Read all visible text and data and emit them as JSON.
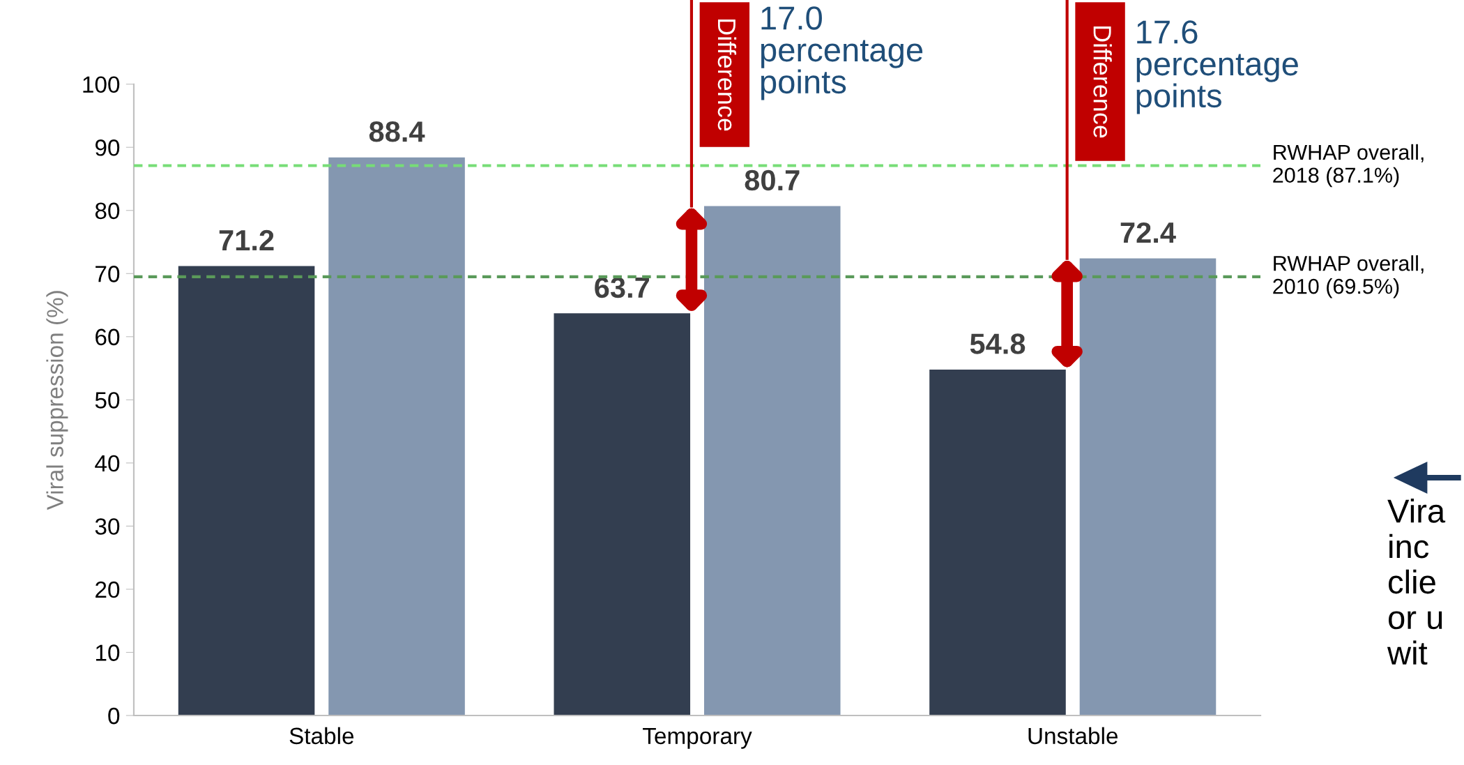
{
  "chart_data": {
    "type": "bar",
    "ylabel": "Viral suppression (%)",
    "categories": [
      "Stable",
      "Temporary",
      "Unstable"
    ],
    "series": [
      {
        "color": "#333e50",
        "values": [
          71.2,
          63.7,
          54.8
        ]
      },
      {
        "color": "#8497b0",
        "values": [
          88.4,
          80.7,
          72.4
        ]
      }
    ],
    "ylim": [
      0,
      100
    ],
    "yticks": [
      0,
      10,
      20,
      30,
      40,
      50,
      60,
      70,
      80,
      90,
      100
    ],
    "grid": false,
    "legend": false,
    "data_labels": true,
    "ref_lines": [
      {
        "axis": "y",
        "value": 87.1,
        "label": "RWHAP overall,\n2018 (87.1%)",
        "color": "#77dd77",
        "line_style": "dashed"
      },
      {
        "axis": "y",
        "value": 69.5,
        "label": "RWHAP overall,\n2010 (69.5%)",
        "color": "#5a9a5a",
        "line_style": "dashed"
      }
    ],
    "annotations": [
      "Difference",
      "17.0\npercentage\npoints",
      "Difference",
      "17.6\npercentage\npoints",
      "Vira\ninc\nclie\nor u\nwit"
    ]
  }
}
